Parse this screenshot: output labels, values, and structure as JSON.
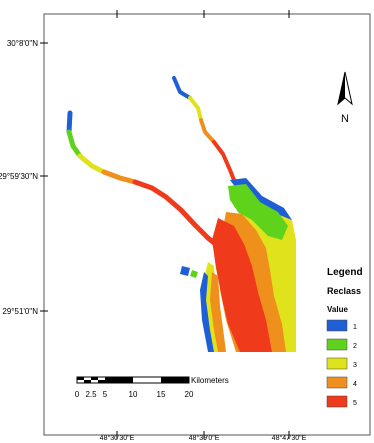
{
  "map": {
    "lat_labels": [
      "30°8'0\"N",
      "29°59'30\"N",
      "29°51'0\"N"
    ],
    "lon_labels": [
      "48°30'30\"E",
      "48°39'0\"E",
      "48°47'30\"E"
    ],
    "north_arrow": {
      "letter": "N",
      "icon": "north-arrow-icon"
    },
    "legend": {
      "title": "Legend",
      "layer": "Reclass",
      "field": "Value",
      "classes": [
        {
          "label": "1",
          "color": "#1f5fd6"
        },
        {
          "label": "2",
          "color": "#5fd21c"
        },
        {
          "label": "3",
          "color": "#e0e21c"
        },
        {
          "label": "4",
          "color": "#f0901c"
        },
        {
          "label": "5",
          "color": "#f03a1c"
        }
      ]
    },
    "scale_bar": {
      "unit": "Kilometers",
      "ticks": [
        "0",
        "2.5",
        "5",
        "10",
        "15",
        "20"
      ]
    }
  }
}
